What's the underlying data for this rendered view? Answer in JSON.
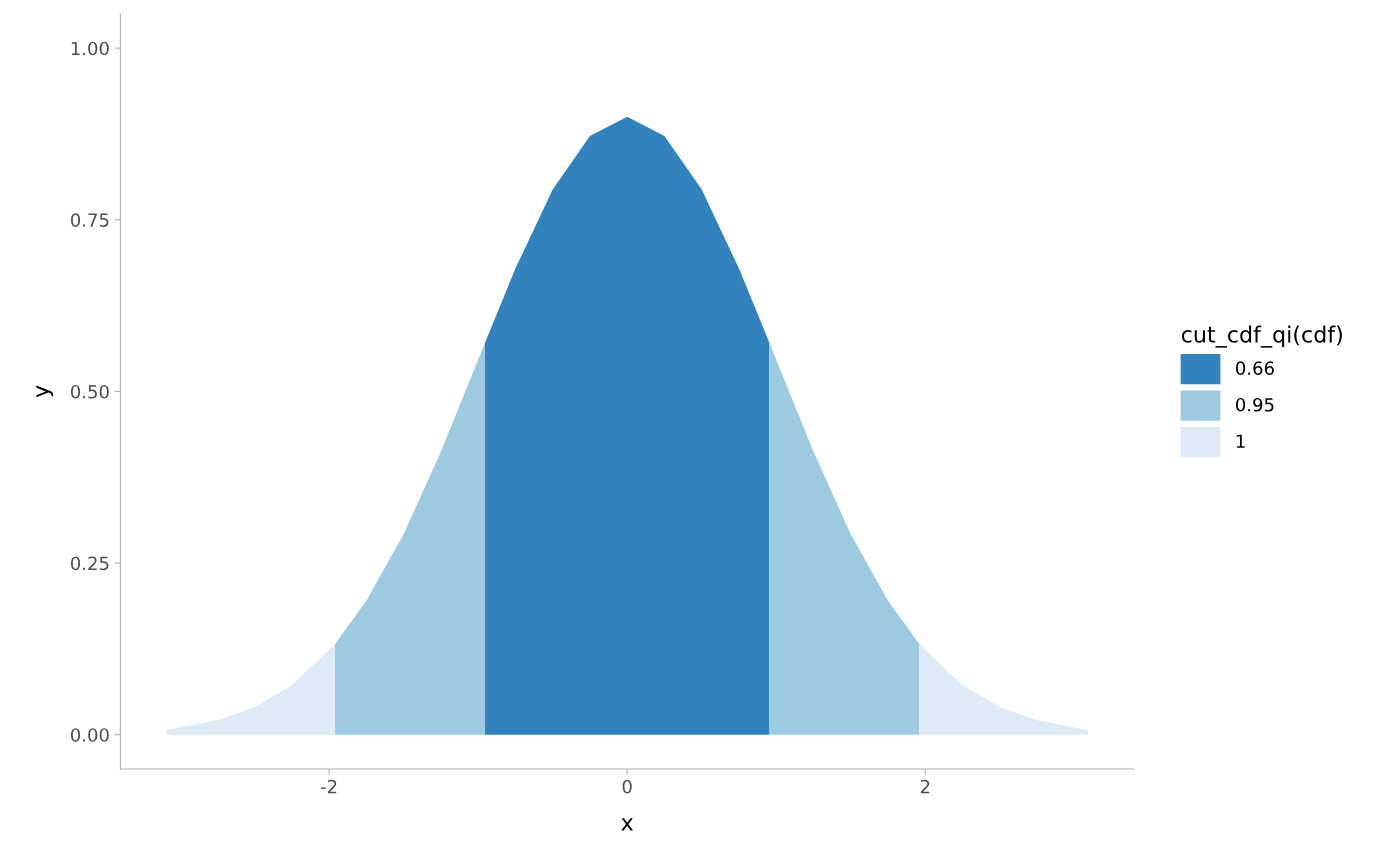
{
  "chart_data": {
    "type": "area",
    "xlabel": "x",
    "ylabel": "y",
    "legend_title": "cut_cdf_qi(cdf)",
    "legend": "right",
    "grid": false,
    "xlim": [
      -3.4,
      3.4
    ],
    "xticks": [
      -2,
      0,
      2
    ],
    "ylim": [
      -0.05,
      1.05
    ],
    "yticks": [
      {
        "value": 0,
        "label": "0.00"
      },
      {
        "value": 0.25,
        "label": "0.25"
      },
      {
        "value": 0.5,
        "label": "0.50"
      },
      {
        "value": 0.75,
        "label": "0.75"
      },
      {
        "value": 1,
        "label": "1.00"
      }
    ],
    "series": [
      {
        "name": "0.66",
        "color": "#3182bd",
        "x": [
          -0.954,
          -0.75,
          -0.5,
          -0.25,
          0,
          0.25,
          0.5,
          0.75,
          0.954
        ],
        "values": [
          0.571,
          0.679,
          0.794,
          0.872,
          0.9,
          0.872,
          0.794,
          0.679,
          0.571
        ]
      },
      {
        "name": "0.95",
        "color": "#9ecae1",
        "x": [
          -1.96,
          -1.75,
          -1.5,
          -1.25,
          -0.954,
          null,
          0.954,
          1.25,
          1.5,
          1.75,
          1.96
        ],
        "values": [
          0.132,
          0.195,
          0.292,
          0.412,
          0.571,
          null,
          0.571,
          0.412,
          0.292,
          0.195,
          0.132
        ]
      },
      {
        "name": "1",
        "color": "#deebf7",
        "x": [
          -3.09,
          -2.75,
          -2.5,
          -2.25,
          -1.96,
          null,
          1.96,
          2.25,
          2.5,
          2.75,
          3.09
        ],
        "values": [
          0.007,
          0.021,
          0.04,
          0.072,
          0.132,
          null,
          0.132,
          0.072,
          0.04,
          0.021,
          0.007
        ]
      }
    ]
  }
}
